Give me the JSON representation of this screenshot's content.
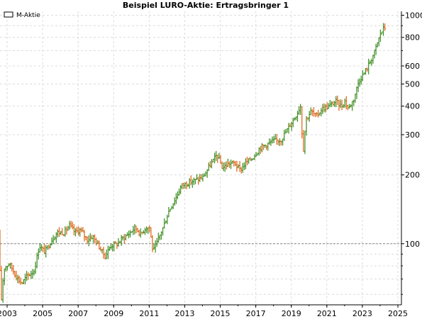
{
  "chart_data": {
    "type": "ohlc",
    "title": "Beispiel LURO-Aktie: Ertragsbringer 1",
    "legend": {
      "label": "M-Aktie",
      "position": "top-left"
    },
    "x_ticks": [
      "2003",
      "2005",
      "2007",
      "2009",
      "2011",
      "2013",
      "2015",
      "2017",
      "2019",
      "2021",
      "2023",
      "2025"
    ],
    "y_ticks": [
      100,
      200,
      300,
      400,
      500,
      600,
      800,
      1000
    ],
    "y_scale": "log",
    "xlim": [
      2002.6,
      2025.2
    ],
    "ylim": [
      54,
      1040
    ],
    "grid": true,
    "reference_line": 100,
    "colors": {
      "up": "#3a8c1e",
      "down": "#e06010",
      "grid": "#dcdcdc",
      "reference": "#888888"
    },
    "series_keypoints": [
      [
        2002.6,
        110
      ],
      [
        2002.75,
        55
      ],
      [
        2002.9,
        78
      ],
      [
        2003.2,
        82
      ],
      [
        2003.6,
        72
      ],
      [
        2003.9,
        67
      ],
      [
        2004.2,
        72
      ],
      [
        2004.6,
        76
      ],
      [
        2004.9,
        98
      ],
      [
        2005.2,
        92
      ],
      [
        2005.6,
        104
      ],
      [
        2005.9,
        112
      ],
      [
        2006.3,
        112
      ],
      [
        2006.6,
        120
      ],
      [
        2006.9,
        112
      ],
      [
        2007.2,
        115
      ],
      [
        2007.6,
        104
      ],
      [
        2007.9,
        108
      ],
      [
        2008.3,
        96
      ],
      [
        2008.6,
        88
      ],
      [
        2008.9,
        98
      ],
      [
        2009.3,
        100
      ],
      [
        2009.6,
        106
      ],
      [
        2009.9,
        110
      ],
      [
        2010.3,
        118
      ],
      [
        2010.6,
        110
      ],
      [
        2010.9,
        118
      ],
      [
        2011.1,
        118
      ],
      [
        2011.3,
        92
      ],
      [
        2011.5,
        100
      ],
      [
        2011.9,
        120
      ],
      [
        2012.2,
        140
      ],
      [
        2012.6,
        160
      ],
      [
        2012.9,
        180
      ],
      [
        2013.3,
        185
      ],
      [
        2013.7,
        190
      ],
      [
        2014.1,
        195
      ],
      [
        2014.5,
        220
      ],
      [
        2014.9,
        245
      ],
      [
        2015.2,
        215
      ],
      [
        2015.6,
        225
      ],
      [
        2015.9,
        225
      ],
      [
        2016.2,
        210
      ],
      [
        2016.5,
        225
      ],
      [
        2016.9,
        238
      ],
      [
        2017.3,
        262
      ],
      [
        2017.7,
        272
      ],
      [
        2018.1,
        282
      ],
      [
        2018.5,
        285
      ],
      [
        2018.9,
        320
      ],
      [
        2019.3,
        360
      ],
      [
        2019.6,
        400
      ],
      [
        2019.75,
        250
      ],
      [
        2019.9,
        350
      ],
      [
        2020.2,
        380
      ],
      [
        2020.5,
        360
      ],
      [
        2020.8,
        390
      ],
      [
        2021.2,
        400
      ],
      [
        2021.6,
        420
      ],
      [
        2021.9,
        400
      ],
      [
        2022.1,
        420
      ],
      [
        2022.3,
        390
      ],
      [
        2022.6,
        430
      ],
      [
        2022.9,
        520
      ],
      [
        2023.2,
        560
      ],
      [
        2023.5,
        620
      ],
      [
        2023.8,
        700
      ],
      [
        2024.1,
        830
      ],
      [
        2024.3,
        880
      ]
    ]
  }
}
